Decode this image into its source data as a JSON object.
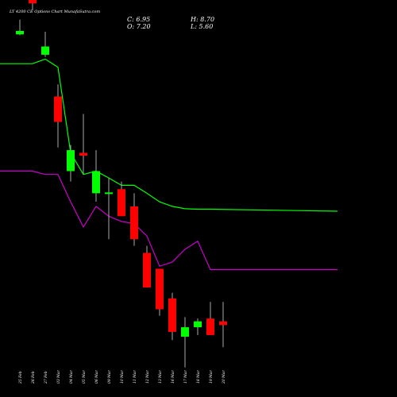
{
  "chart_data": {
    "type": "candlestick",
    "title": "LT 4200 CE Options Chart MunafaSutra.com",
    "ohlc": {
      "close_label": "C: 6.95",
      "high_label": "H: 8.70",
      "open_label": "O: 7.20",
      "low_label": "L: 5.60"
    },
    "dates": [
      "25 Feb",
      "26 Feb",
      "27 Feb",
      "03 Mar",
      "04 Mar",
      "05 Mar",
      "06 Mar",
      "09 Mar",
      "10 Mar",
      "11 Mar",
      "12 Mar",
      "13 Mar",
      "16 Mar",
      "17 Mar",
      "18 Mar",
      "19 Mar",
      "20 Mar"
    ],
    "candles": [
      {
        "open": 117,
        "high": 135,
        "low": 116,
        "close": 121
      },
      {
        "open": 198,
        "high": 202,
        "low": 148,
        "close": 158
      },
      {
        "open": 96,
        "high": 120,
        "low": 94,
        "close": 104
      },
      {
        "open": 64,
        "high": 72,
        "low": 39,
        "close": 50
      },
      {
        "open": 31,
        "high": 40,
        "low": 28,
        "close": 38
      },
      {
        "open": 37,
        "high": 54,
        "low": 30,
        "close": 36
      },
      {
        "open": 25,
        "high": 38,
        "low": 23,
        "close": 31
      },
      {
        "open": 25,
        "high": 29,
        "low": 16,
        "close": 25
      },
      {
        "open": 26,
        "high": 28,
        "low": 20,
        "close": 20
      },
      {
        "open": 22,
        "high": 25,
        "low": 15,
        "close": 16
      },
      {
        "open": 14,
        "high": 15,
        "low": 10,
        "close": 10
      },
      {
        "open": 12,
        "high": 12,
        "low": 7.6,
        "close": 8.1
      },
      {
        "open": 9.0,
        "high": 9.5,
        "low": 6.0,
        "close": 6.5
      },
      {
        "open": 6.2,
        "high": 7.5,
        "low": 4.6,
        "close": 6.8
      },
      {
        "open": 6.8,
        "high": 7.4,
        "low": 6.3,
        "close": 7.2
      },
      {
        "open": 7.4,
        "high": 8.7,
        "low": 6.3,
        "close": 6.3
      },
      {
        "open": 7.2,
        "high": 8.7,
        "low": 5.6,
        "close": 6.95
      }
    ],
    "overlay_lines": [
      {
        "color": "#00ff00",
        "values": [
          88,
          88,
          92,
          85,
          37,
          30,
          31,
          29,
          27,
          27,
          25,
          23,
          22,
          21.5,
          21.4,
          21.4,
          21
        ]
      },
      {
        "color": "#cc00cc",
        "values": [
          31,
          31,
          30,
          30,
          23,
          18,
          22,
          20,
          19,
          18.6,
          16.5,
          12.3,
          12.8,
          14.5,
          15.7,
          11.9,
          11.9
        ]
      }
    ],
    "colors": {
      "up": "#00ff00",
      "down": "#ff0000",
      "wick": "#aaaaaa",
      "background": "#000000"
    }
  }
}
